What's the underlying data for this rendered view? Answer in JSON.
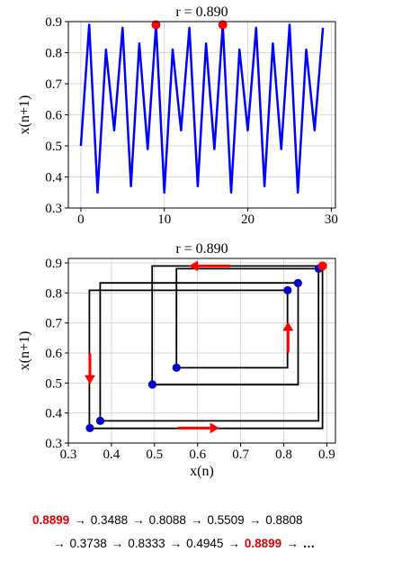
{
  "colors": {
    "series": "#0000ff",
    "highlight": "#ff0000",
    "path": "#000000",
    "sequence_highlight": "#e00000"
  },
  "chart_data": [
    {
      "type": "line",
      "title": "r = 0.890",
      "xlabel": "",
      "ylabel": "x(n+1)",
      "xlim": [
        -1.5,
        30.5
      ],
      "ylim": [
        0.3,
        0.9
      ],
      "xticks": [
        0,
        10,
        20,
        30
      ],
      "yticks": [
        0.3,
        0.4,
        0.5,
        0.6,
        0.7,
        0.8,
        0.9
      ],
      "grid": true,
      "series": [
        {
          "x": [
            0,
            1,
            2,
            3,
            4,
            5,
            6,
            7,
            8,
            9,
            10,
            11,
            12,
            13,
            14,
            15,
            16,
            17,
            18,
            19,
            20,
            21,
            22,
            23,
            24,
            25,
            26,
            27,
            28,
            29
          ],
          "values": [
            0.5,
            0.89,
            0.35,
            0.81,
            0.55,
            0.88,
            0.37,
            0.83,
            0.49,
            0.89,
            0.35,
            0.81,
            0.55,
            0.88,
            0.37,
            0.83,
            0.49,
            0.89,
            0.35,
            0.81,
            0.55,
            0.88,
            0.37,
            0.83,
            0.49,
            0.89,
            0.35,
            0.81,
            0.55,
            0.88
          ],
          "color": "#0000ff"
        }
      ],
      "highlight_points": [
        {
          "x": 9,
          "y": 0.8899
        },
        {
          "x": 17,
          "y": 0.8899
        }
      ]
    },
    {
      "type": "scatter",
      "title": "r = 0.890",
      "xlabel": "x(n)",
      "ylabel": "x(n+1)",
      "xlim": [
        0.3,
        0.92
      ],
      "ylim": [
        0.3,
        0.915
      ],
      "xticks": [
        0.3,
        0.4,
        0.5,
        0.6,
        0.7,
        0.8,
        0.9
      ],
      "yticks": [
        0.3,
        0.4,
        0.5,
        0.6,
        0.7,
        0.8,
        0.9
      ],
      "grid": true,
      "cobweb_sequence": [
        0.8899,
        0.3488,
        0.8088,
        0.5509,
        0.8808,
        0.3738,
        0.8333,
        0.4945,
        0.8899
      ],
      "points": [
        {
          "x": 0.8899,
          "y": 0.3488
        },
        {
          "x": 0.3488,
          "y": 0.8088
        },
        {
          "x": 0.8088,
          "y": 0.5509
        },
        {
          "x": 0.5509,
          "y": 0.8808
        },
        {
          "x": 0.8808,
          "y": 0.3738
        },
        {
          "x": 0.3738,
          "y": 0.8333
        },
        {
          "x": 0.8333,
          "y": 0.4945
        },
        {
          "x": 0.4945,
          "y": 0.8899
        }
      ],
      "plotted_points": [
        {
          "x": 0.35,
          "y": 0.35
        },
        {
          "x": 0.374,
          "y": 0.374
        },
        {
          "x": 0.495,
          "y": 0.495
        },
        {
          "x": 0.551,
          "y": 0.551
        },
        {
          "x": 0.809,
          "y": 0.809
        },
        {
          "x": 0.833,
          "y": 0.833
        },
        {
          "x": 0.881,
          "y": 0.881
        }
      ],
      "highlight_point": {
        "x": 0.89,
        "y": 0.89
      },
      "arrows": [
        {
          "at": [
            0.35,
            0.55
          ],
          "direction": "down"
        },
        {
          "at": [
            0.63,
            0.89
          ],
          "direction": "left"
        },
        {
          "at": [
            0.81,
            0.65
          ],
          "direction": "up"
        },
        {
          "at": [
            0.6,
            0.35
          ],
          "direction": "right"
        }
      ]
    }
  ],
  "sequence": {
    "line1": [
      {
        "text": "0.8899",
        "highlight": true
      },
      {
        "text": "0.3488",
        "highlight": false
      },
      {
        "text": "0.8088",
        "highlight": false
      },
      {
        "text": "0.5509",
        "highlight": false
      },
      {
        "text": "0.8808",
        "highlight": false
      }
    ],
    "line2": [
      {
        "text": "0.3738",
        "highlight": false
      },
      {
        "text": "0.8333",
        "highlight": false
      },
      {
        "text": "0.4945",
        "highlight": false
      },
      {
        "text": "0.8899",
        "highlight": true
      }
    ],
    "arrow": "→",
    "ellipsis": "…"
  }
}
